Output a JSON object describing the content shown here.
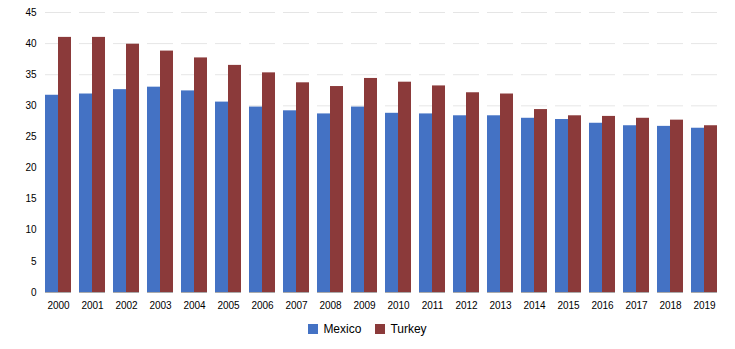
{
  "chart_data": {
    "type": "bar",
    "categories": [
      "2000",
      "2001",
      "2002",
      "2003",
      "2004",
      "2005",
      "2006",
      "2007",
      "2008",
      "2009",
      "2010",
      "2011",
      "2012",
      "2013",
      "2014",
      "2015",
      "2016",
      "2017",
      "2018",
      "2019"
    ],
    "series": [
      {
        "name": "Mexico",
        "color": "#4472C4",
        "values": [
          31.7,
          31.9,
          32.6,
          33.0,
          32.4,
          30.6,
          29.8,
          29.2,
          28.7,
          29.8,
          28.8,
          28.7,
          28.4,
          28.4,
          28.0,
          27.8,
          27.2,
          26.8,
          26.7,
          26.4
        ]
      },
      {
        "name": "Turkey",
        "color": "#8B3A3A",
        "values": [
          41.0,
          41.0,
          39.9,
          38.8,
          37.7,
          36.5,
          35.3,
          33.7,
          33.1,
          34.4,
          33.8,
          33.2,
          32.1,
          31.9,
          29.4,
          28.4,
          28.3,
          28.0,
          27.7,
          26.8
        ]
      }
    ],
    "ylim": [
      0,
      45
    ],
    "yticks": [
      0,
      5,
      10,
      15,
      20,
      25,
      30,
      35,
      40,
      45
    ],
    "grid": true,
    "legend": "bottom"
  }
}
